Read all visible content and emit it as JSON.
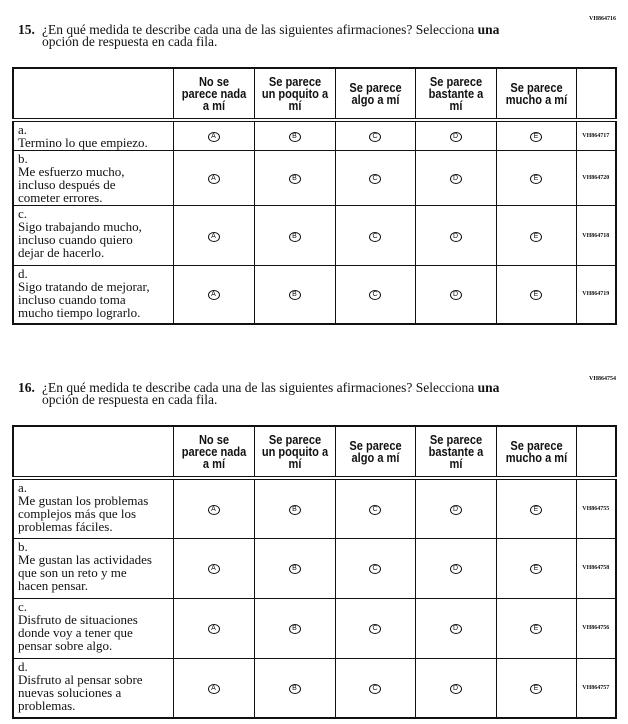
{
  "columns": [
    "No se parece nada a mí",
    "Se parece un poquito a mí",
    "Se parece algo a mí",
    "Se parece bastante a mí",
    "Se parece mucho a mí"
  ],
  "options": [
    "A",
    "B",
    "C",
    "D",
    "E"
  ],
  "questions": [
    {
      "code": "VH864716",
      "number": "15.",
      "text_line1": "¿En qué medida te describe cada una de las siguientes afirmaciones? Selecciona",
      "emph": "una",
      "text_line2": "opción de respuesta en cada fila.",
      "items": [
        {
          "letter": "a.",
          "text": "Termino lo que empiezo.",
          "code": "VH864717"
        },
        {
          "letter": "b.",
          "text": "Me esfuerzo mucho, incluso después de cometer errores.",
          "code": "VH864720"
        },
        {
          "letter": "c.",
          "text": "Sigo trabajando mucho, incluso cuando quiero dejar de hacerlo.",
          "code": "VH864718"
        },
        {
          "letter": "d.",
          "text": "Sigo tratando de mejorar, incluso cuando toma mucho tiempo lograrlo.",
          "code": "VH864719"
        }
      ]
    },
    {
      "code": "VH864754",
      "number": "16.",
      "text_line1": "¿En qué medida te describe cada una de las siguientes afirmaciones? Selecciona",
      "emph": "una",
      "text_line2": "opción de respuesta en cada fila.",
      "items": [
        {
          "letter": "a.",
          "text": "Me gustan los problemas complejos más que los problemas fáciles.",
          "code": "VH864755"
        },
        {
          "letter": "b.",
          "text": "Me gustan las actividades que son un reto y me hacen pensar.",
          "code": "VH864758"
        },
        {
          "letter": "c.",
          "text": "Disfruto de situaciones donde voy a tener que pensar sobre algo.",
          "code": "VH864756"
        },
        {
          "letter": "d.",
          "text": "Disfruto al pensar sobre nuevas soluciones a problemas.",
          "code": "VH864757"
        }
      ]
    }
  ]
}
